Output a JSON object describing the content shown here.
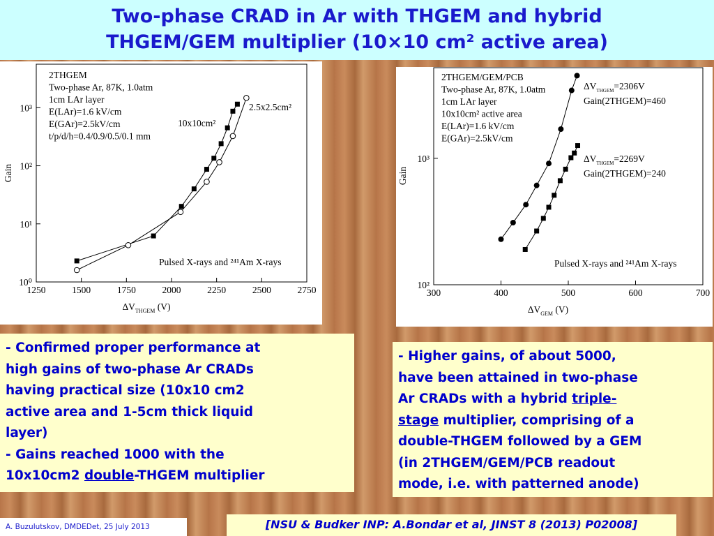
{
  "title": [
    "Two-phase CRAD in Ar with THGEM and hybrid",
    "THGEM/GEM multiplier (10×10 cm² active area)"
  ],
  "chart_data": [
    {
      "type": "scatter",
      "xlabel": [
        "ΔV",
        "THGEM",
        " (V)"
      ],
      "ylabel": "Gain",
      "xlim": [
        1250,
        2750
      ],
      "xticks": [
        1250,
        1500,
        1750,
        2000,
        2250,
        2500,
        2750
      ],
      "ylim": [
        1,
        5600
      ],
      "ylog": true,
      "yticks": [
        {
          "value": 1,
          "label": "10⁰"
        },
        {
          "value": 10,
          "label": "10¹"
        },
        {
          "value": 100,
          "label": "10²"
        },
        {
          "value": 1000,
          "label": "10³"
        }
      ],
      "annotations": [
        "2THGEM",
        "Two-phase Ar, 87K, 1.0atm",
        "1cm LAr layer",
        "E(LAr)=1.6 kV/cm",
        "E(GAr)=2.5kV/cm",
        "t/p/d/h=0.4/0.9/0.5/0.1 mm"
      ],
      "note": "Pulsed X-rays and ²⁴¹Am X-rays",
      "series": [
        {
          "name": "10x10cm²",
          "marker": "square",
          "color": "#000000",
          "x": [
            1475,
            1900,
            2055,
            2125,
            2195,
            2235,
            2275,
            2310,
            2340,
            2365
          ],
          "values": [
            2.3,
            6.2,
            20,
            40,
            87,
            135,
            240,
            450,
            870,
            1150
          ]
        },
        {
          "name": "2.5x2.5cm²",
          "marker": "circle",
          "color": "#000000",
          "x": [
            1475,
            1760,
            2050,
            2195,
            2265,
            2340,
            2415
          ],
          "values": [
            1.6,
            4.3,
            16,
            53,
            115,
            325,
            1470
          ]
        }
      ]
    },
    {
      "type": "scatter",
      "xlabel": [
        "ΔV",
        "GEM",
        " (V)"
      ],
      "ylabel": "Gain",
      "xlim": [
        300,
        700
      ],
      "xticks": [
        300,
        400,
        500,
        600,
        700
      ],
      "ylim": [
        100,
        5200
      ],
      "ylog": true,
      "yticks": [
        {
          "value": 100,
          "label": "10²"
        },
        {
          "value": 1000,
          "label": "10³"
        }
      ],
      "annotations": [
        "2THGEM/GEM/PCB",
        "Two-phase Ar, 87K, 1.0atm",
        "1cm LAr layer",
        "10x10cm² active area",
        "E(LAr)=1.6 kV/cm",
        "E(GAr)=2.5kV/cm"
      ],
      "note": "Pulsed X-rays and ²⁴¹Am X-rays",
      "series": [
        {
          "name": [
            "ΔV",
            "THGEM",
            "=2306V"
          ],
          "label": "Gain(2THGEM)=460",
          "marker": "circle-filled",
          "color": "#000000",
          "x": [
            400,
            418,
            437,
            453,
            471,
            489,
            505,
            513
          ],
          "values": [
            229,
            310,
            430,
            610,
            910,
            1700,
            3440,
            4500
          ]
        },
        {
          "name": [
            "ΔV",
            "THGEM",
            "=2269V"
          ],
          "label": "Gain(2THGEM)=240",
          "marker": "square",
          "color": "#000000",
          "x": [
            436,
            453,
            463,
            471,
            479,
            488,
            496,
            504,
            509,
            514
          ],
          "values": [
            190,
            266,
            335,
            410,
            510,
            665,
            820,
            1010,
            1100,
            1260
          ]
        }
      ]
    }
  ],
  "left_box": [
    [
      "- Confirmed proper performance at"
    ],
    [
      "high gains of two-phase Ar CRADs"
    ],
    [
      "having practical size (10x10 cm2"
    ],
    [
      "active area and 1-5cm thick liquid"
    ],
    [
      "layer)"
    ],
    [
      "- Gains reached 1000 with the"
    ],
    [
      "10x10cm2 ",
      {
        "text": "double",
        "underline": true
      },
      "-THGEM multiplier"
    ]
  ],
  "right_box": [
    [
      "- Higher gains, of about 5000,"
    ],
    [
      "have been attained in two-phase"
    ],
    [
      "Ar CRADs with a hybrid ",
      {
        "text": "triple-",
        "underline": true
      }
    ],
    [
      {
        "text": "stage",
        "underline": true
      },
      " multiplier, comprising of a"
    ],
    [
      "double-THGEM followed by a GEM"
    ],
    [
      "(in 2THGEM/GEM/PCB readout"
    ],
    [
      "mode, i.e. with patterned anode)"
    ]
  ],
  "footer": "A. Buzulutskov, DMDEDet, 25 July 2013",
  "citation": "[NSU & Budker INP: A.Bondar et al, JINST 8 (2013) P02008]"
}
